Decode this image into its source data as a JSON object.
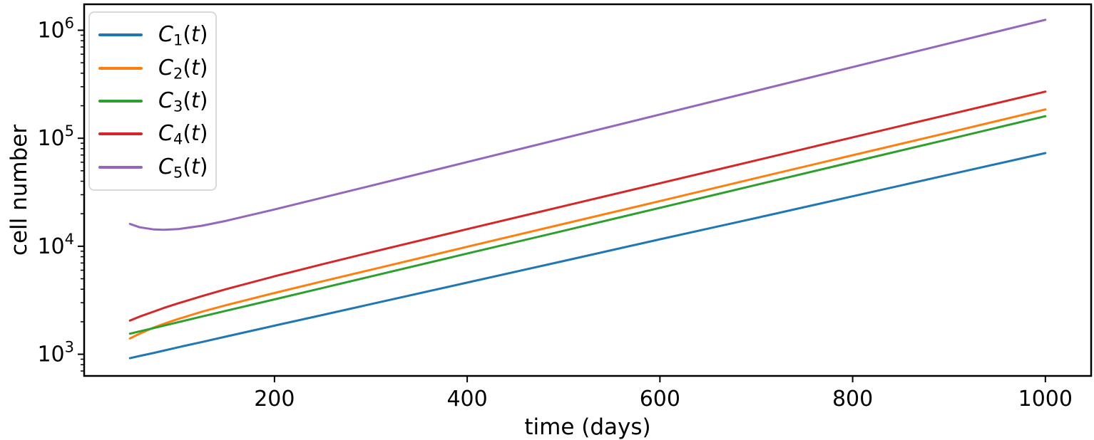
{
  "chart_data": {
    "type": "line",
    "title": "",
    "xlabel": "time (days)",
    "ylabel": "cell number",
    "x_scale": "linear",
    "y_scale": "log",
    "xlim": [
      2.5,
      1047.5
    ],
    "ylim": [
      630,
      1740000
    ],
    "xticks": [
      200,
      400,
      600,
      800,
      1000
    ],
    "yticks": [
      1000,
      10000,
      100000,
      1000000
    ],
    "ytick_labels": [
      "10^3",
      "10^4",
      "10^5",
      "10^6"
    ],
    "ytick_mantissa": "10",
    "ytick_exponents": [
      3,
      4,
      5,
      6
    ],
    "grid": false,
    "legend_position": "upper-left",
    "x": [
      50,
      60,
      75,
      85,
      100,
      125,
      150,
      200,
      250,
      300,
      400,
      500,
      600,
      700,
      800,
      900,
      1000
    ],
    "series": [
      {
        "label": "C1(t)",
        "math": {
          "base": "C",
          "sub": "1",
          "var": "t"
        },
        "color": "#1f77b4",
        "values": [
          920,
          963,
          1030,
          1080,
          1160,
          1300,
          1460,
          1840,
          2310,
          2910,
          4610,
          7300,
          11600,
          18300,
          29000,
          46000,
          72900
        ]
      },
      {
        "label": "C2(t)",
        "math": {
          "base": "C",
          "sub": "2",
          "var": "t"
        },
        "color": "#ff7f0e",
        "values": [
          1400,
          1550,
          1770,
          1910,
          2120,
          2480,
          2850,
          3690,
          4740,
          6060,
          9890,
          16100,
          26200,
          42800,
          69700,
          113000,
          185000
        ]
      },
      {
        "label": "C3(t)",
        "math": {
          "base": "C",
          "sub": "3",
          "var": "t"
        },
        "color": "#2ca02c",
        "values": [
          1550,
          1630,
          1750,
          1840,
          1980,
          2240,
          2530,
          3220,
          4110,
          5250,
          8560,
          13900,
          22700,
          37000,
          60300,
          98200,
          160000
        ]
      },
      {
        "label": "C4(t)",
        "math": {
          "base": "C",
          "sub": "4",
          "var": "t"
        },
        "color": "#d62728",
        "values": [
          2050,
          2230,
          2490,
          2680,
          2960,
          3460,
          4010,
          5270,
          6820,
          8780,
          14400,
          23500,
          38300,
          62400,
          102000,
          166000,
          270000
        ]
      },
      {
        "label": "C5(t)",
        "math": {
          "base": "C",
          "sub": "5",
          "var": "t"
        },
        "color": "#9467bd",
        "values": [
          16100,
          15000,
          14300,
          14200,
          14400,
          15500,
          17200,
          21900,
          28200,
          36300,
          60200,
          99900,
          166000,
          275000,
          456000,
          756000,
          1250000
        ]
      }
    ]
  }
}
